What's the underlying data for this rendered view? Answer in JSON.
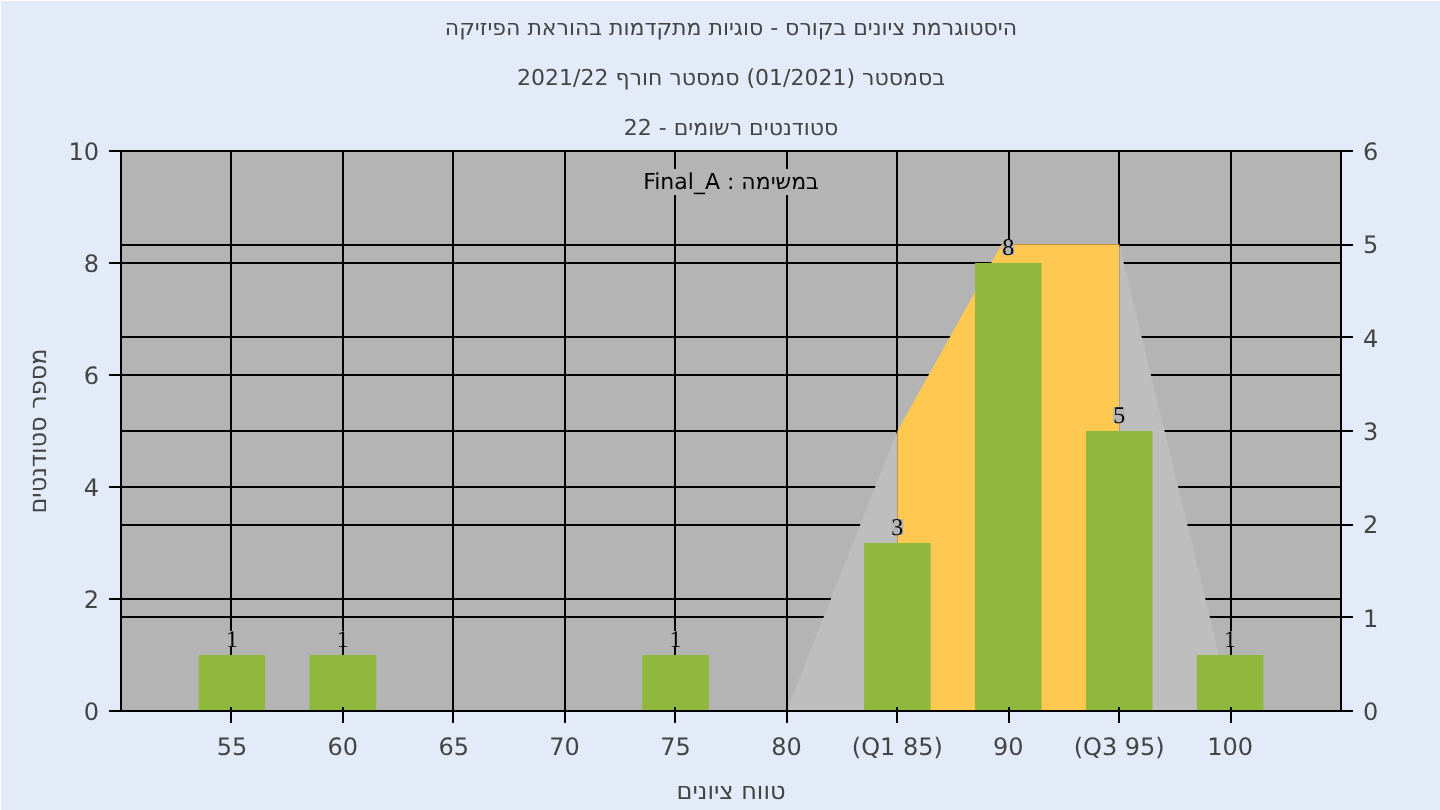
{
  "chart_data": {
    "type": "bar",
    "title": "היסטוגרמת ציונים בקורס - סוגיות מתקדמות בהוראת הפיזיקה",
    "subtitle": [
      "בסמסטר (01/2021) סמסטר חורף 2021/22",
      "סטודנטים רשומים - 22"
    ],
    "xlabel": "טווח ציונים",
    "ylabel": "מספר סטודנטים",
    "annotations": [
      "Final_A : במשימה"
    ],
    "x": [
      55,
      60,
      75,
      85,
      90,
      95,
      100
    ],
    "series": [
      {
        "type": "area",
        "axis": "y2",
        "x": [
          80,
          85
        ],
        "values": [
          0,
          3
        ],
        "color": "#bebebe"
      },
      {
        "type": "area",
        "axis": "y2",
        "x": [
          85,
          85,
          89.7,
          95,
          95
        ],
        "values": [
          0,
          3,
          5,
          5,
          0
        ],
        "color": "#ffc850"
      },
      {
        "type": "area",
        "axis": "y2",
        "x": [
          95,
          99.5,
          99.5
        ],
        "values": [
          5,
          0.6,
          0
        ],
        "color": "#bebebe"
      },
      {
        "values": [
          1,
          1,
          1,
          3,
          8,
          5,
          1
        ],
        "value_labels": [
          "1",
          "1",
          "1",
          "3",
          "8",
          "5",
          "1"
        ],
        "color": "#8fb83c"
      }
    ],
    "xlim": [
      50,
      105
    ],
    "xticks": [
      55,
      60,
      65,
      70,
      75,
      80,
      {
        "value": 85,
        "label": "(Q1 85)"
      },
      90,
      {
        "value": 95,
        "label": "(Q3 95)"
      },
      100
    ],
    "ylim": [
      0,
      10
    ],
    "yticks": [
      0,
      2,
      4,
      6,
      8,
      10
    ],
    "y2lim": [
      0,
      6
    ],
    "y2ticks": [
      0,
      1,
      2,
      3,
      4,
      5,
      6
    ],
    "grid": true
  }
}
